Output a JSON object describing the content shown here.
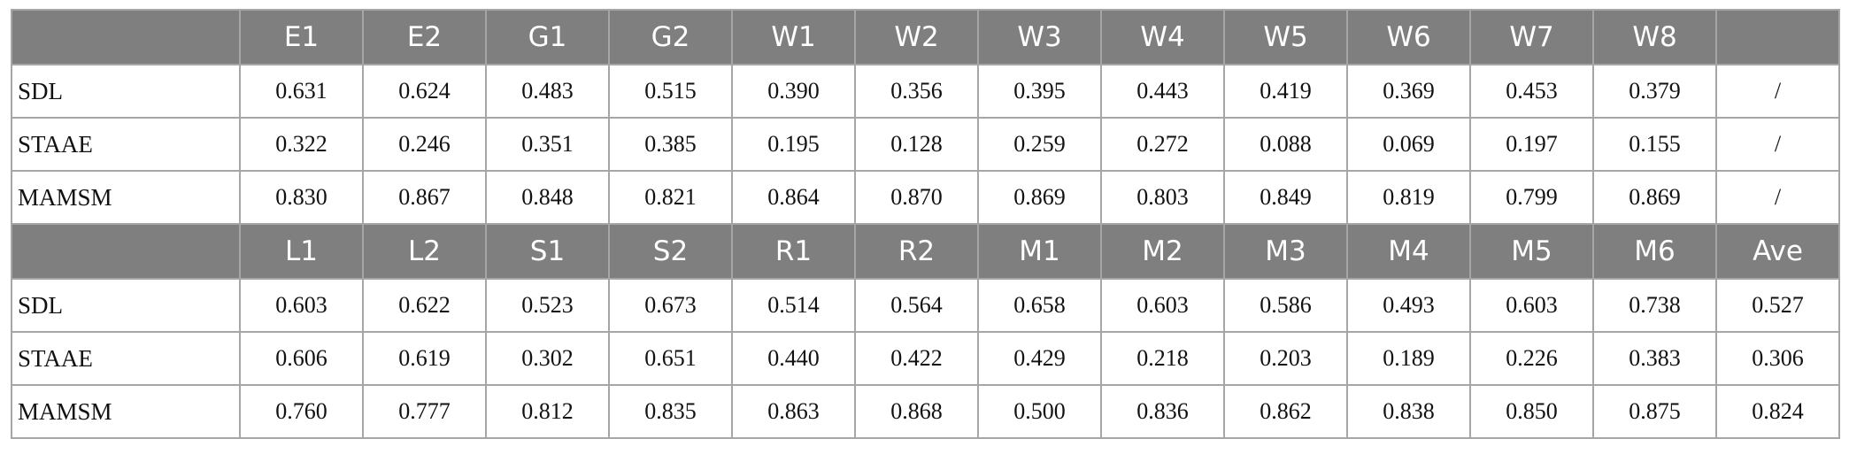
{
  "table": {
    "sections": [
      {
        "header": [
          "",
          "E1",
          "E2",
          "G1",
          "G2",
          "W1",
          "W2",
          "W3",
          "W4",
          "W5",
          "W6",
          "W7",
          "W8",
          ""
        ],
        "rows": [
          {
            "label": "SDL",
            "values": [
              "0.631",
              "0.624",
              "0.483",
              "0.515",
              "0.390",
              "0.356",
              "0.395",
              "0.443",
              "0.419",
              "0.369",
              "0.453",
              "0.379",
              "/"
            ]
          },
          {
            "label": "STAAE",
            "values": [
              "0.322",
              "0.246",
              "0.351",
              "0.385",
              "0.195",
              "0.128",
              "0.259",
              "0.272",
              "0.088",
              "0.069",
              "0.197",
              "0.155",
              "/"
            ]
          },
          {
            "label": "MAMSM",
            "values": [
              "0.830",
              "0.867",
              "0.848",
              "0.821",
              "0.864",
              "0.870",
              "0.869",
              "0.803",
              "0.849",
              "0.819",
              "0.799",
              "0.869",
              "/"
            ]
          }
        ]
      },
      {
        "header": [
          "",
          "L1",
          "L2",
          "S1",
          "S2",
          "R1",
          "R2",
          "M1",
          "M2",
          "M3",
          "M4",
          "M5",
          "M6",
          "Ave"
        ],
        "rows": [
          {
            "label": "SDL",
            "values": [
              "0.603",
              "0.622",
              "0.523",
              "0.673",
              "0.514",
              "0.564",
              "0.658",
              "0.603",
              "0.586",
              "0.493",
              "0.603",
              "0.738",
              "0.527"
            ]
          },
          {
            "label": "STAAE",
            "values": [
              "0.606",
              "0.619",
              "0.302",
              "0.651",
              "0.440",
              "0.422",
              "0.429",
              "0.218",
              "0.203",
              "0.189",
              "0.226",
              "0.383",
              "0.306"
            ]
          },
          {
            "label": "MAMSM",
            "values": [
              "0.760",
              "0.777",
              "0.812",
              "0.835",
              "0.863",
              "0.868",
              "0.500",
              "0.836",
              "0.862",
              "0.838",
              "0.850",
              "0.875",
              "0.824"
            ]
          }
        ]
      }
    ],
    "colors": {
      "header_bg": "#7f7f7f",
      "header_text": "#ffffff",
      "border": "#a6a6a6"
    }
  }
}
